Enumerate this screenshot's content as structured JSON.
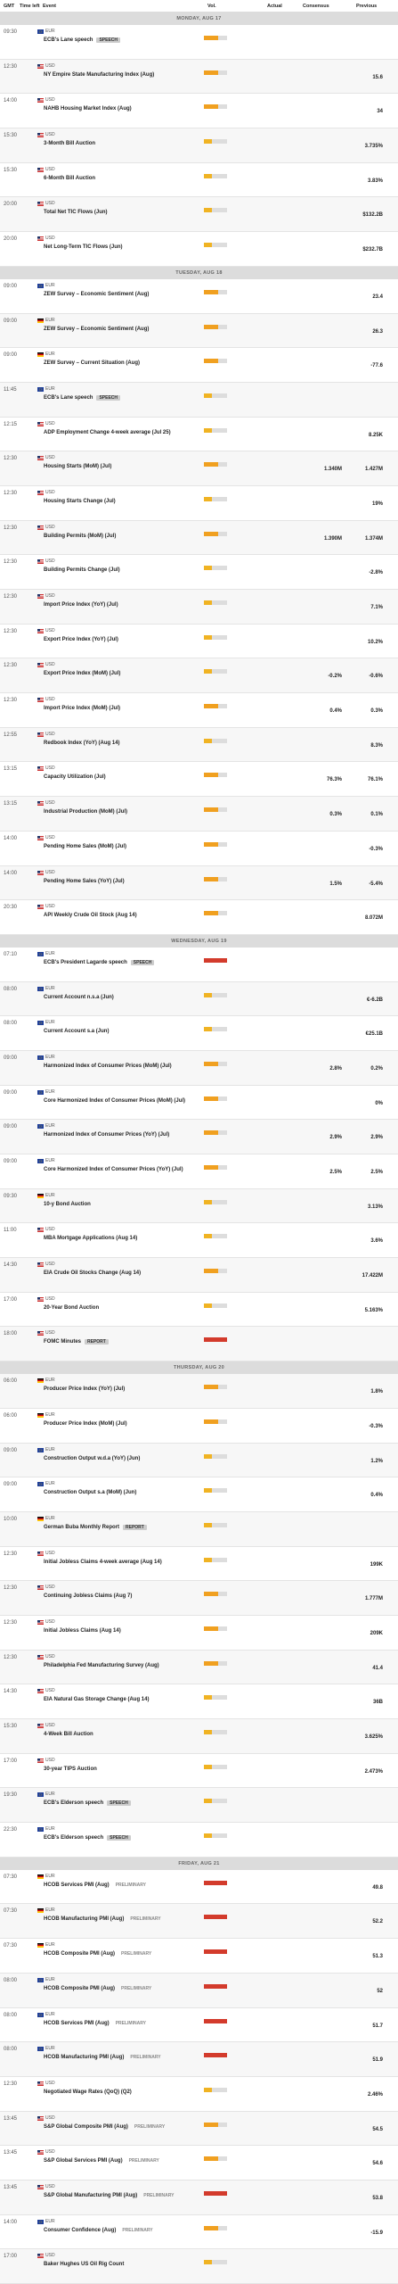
{
  "header": {
    "columns": [
      "GMT",
      "Time left",
      "Event",
      "Vol.",
      "Actual",
      "Consensus",
      "Previous"
    ]
  },
  "days": [
    {
      "label": "MONDAY, AUG 17",
      "events": [
        {
          "time": "09:30",
          "flag": "eu",
          "currency": "EUR",
          "event": "ECB's Lane speech",
          "tag": "SPEECH",
          "vol": "medium"
        },
        {
          "time": "12:30",
          "flag": "us",
          "currency": "USD",
          "event": "NY Empire State Manufacturing Index (Aug)",
          "previous": "15.6",
          "vol": "medium"
        },
        {
          "time": "14:00",
          "flag": "us",
          "currency": "USD",
          "event": "NAHB Housing Market Index (Aug)",
          "previous": "34",
          "vol": "medium"
        },
        {
          "time": "15:30",
          "flag": "us",
          "currency": "USD",
          "event": "3-Month Bill Auction",
          "previous": "3.735%",
          "vol": "low"
        },
        {
          "time": "15:30",
          "flag": "us",
          "currency": "USD",
          "event": "6-Month Bill Auction",
          "previous": "3.83%",
          "vol": "low"
        },
        {
          "time": "20:00",
          "flag": "us",
          "currency": "USD",
          "event": "Total Net TIC Flows (Jun)",
          "previous": "$132.2B",
          "vol": "low"
        },
        {
          "time": "20:00",
          "flag": "us",
          "currency": "USD",
          "event": "Net Long-Term TIC Flows (Jun)",
          "previous": "$232.7B",
          "vol": "low"
        }
      ]
    },
    {
      "label": "TUESDAY, AUG 18",
      "events": [
        {
          "time": "09:00",
          "flag": "eu",
          "currency": "EUR",
          "event": "ZEW Survey – Economic Sentiment (Aug)",
          "previous": "23.4",
          "vol": "medium"
        },
        {
          "time": "09:00",
          "flag": "de",
          "currency": "EUR",
          "event": "ZEW Survey – Economic Sentiment (Aug)",
          "previous": "26.3",
          "vol": "medium"
        },
        {
          "time": "09:00",
          "flag": "de",
          "currency": "EUR",
          "event": "ZEW Survey – Current Situation (Aug)",
          "previous": "-77.6",
          "vol": "medium"
        },
        {
          "time": "11:45",
          "flag": "eu",
          "currency": "EUR",
          "event": "ECB's Lane speech",
          "tag": "SPEECH",
          "vol": "low"
        },
        {
          "time": "12:15",
          "flag": "us",
          "currency": "USD",
          "event": "ADP Employment Change 4-week average (Jul 25)",
          "previous": "8.25K",
          "vol": "low"
        },
        {
          "time": "12:30",
          "flag": "us",
          "currency": "USD",
          "event": "Housing Starts (MoM) (Jul)",
          "consensus": "1.340M",
          "previous": "1.427M",
          "vol": "medium"
        },
        {
          "time": "12:30",
          "flag": "us",
          "currency": "USD",
          "event": "Housing Starts Change (Jul)",
          "previous": "19%",
          "vol": "low"
        },
        {
          "time": "12:30",
          "flag": "us",
          "currency": "USD",
          "event": "Building Permits (MoM) (Jul)",
          "consensus": "1.390M",
          "previous": "1.374M",
          "vol": "medium"
        },
        {
          "time": "12:30",
          "flag": "us",
          "currency": "USD",
          "event": "Building Permits Change (Jul)",
          "previous": "-2.8%",
          "vol": "low"
        },
        {
          "time": "12:30",
          "flag": "us",
          "currency": "USD",
          "event": "Import Price Index (YoY) (Jul)",
          "previous": "7.1%",
          "vol": "low"
        },
        {
          "time": "12:30",
          "flag": "us",
          "currency": "USD",
          "event": "Export Price Index (YoY) (Jul)",
          "previous": "10.2%",
          "vol": "low"
        },
        {
          "time": "12:30",
          "flag": "us",
          "currency": "USD",
          "event": "Export Price Index (MoM) (Jul)",
          "consensus": "-0.2%",
          "previous": "-0.6%",
          "vol": "low"
        },
        {
          "time": "12:30",
          "flag": "us",
          "currency": "USD",
          "event": "Import Price Index (MoM) (Jul)",
          "consensus": "0.4%",
          "previous": "0.3%",
          "vol": "medium"
        },
        {
          "time": "12:55",
          "flag": "us",
          "currency": "USD",
          "event": "Redbook Index (YoY) (Aug 14)",
          "previous": "8.3%",
          "vol": "low"
        },
        {
          "time": "13:15",
          "flag": "us",
          "currency": "USD",
          "event": "Capacity Utilization (Jul)",
          "consensus": "76.3%",
          "previous": "76.1%",
          "vol": "medium"
        },
        {
          "time": "13:15",
          "flag": "us",
          "currency": "USD",
          "event": "Industrial Production (MoM) (Jul)",
          "consensus": "0.3%",
          "previous": "0.1%",
          "vol": "medium"
        },
        {
          "time": "14:00",
          "flag": "us",
          "currency": "USD",
          "event": "Pending Home Sales (MoM) (Jul)",
          "previous": "-0.3%",
          "vol": "medium"
        },
        {
          "time": "14:00",
          "flag": "us",
          "currency": "USD",
          "event": "Pending Home Sales (YoY) (Jul)",
          "consensus": "1.5%",
          "previous": "-5.4%",
          "vol": "medium"
        },
        {
          "time": "20:30",
          "flag": "us",
          "currency": "USD",
          "event": "API Weekly Crude Oil Stock (Aug 14)",
          "previous": "8.072M",
          "vol": "medium"
        }
      ]
    },
    {
      "label": "WEDNESDAY, AUG 19",
      "events": [
        {
          "time": "07:10",
          "flag": "eu",
          "currency": "EUR",
          "event": "ECB's President Lagarde speech",
          "tag": "SPEECH",
          "vol": "high"
        },
        {
          "time": "08:00",
          "flag": "eu",
          "currency": "EUR",
          "event": "Current Account n.s.a (Jun)",
          "previous": "€-6.2B",
          "vol": "low"
        },
        {
          "time": "08:00",
          "flag": "eu",
          "currency": "EUR",
          "event": "Current Account s.a (Jun)",
          "previous": "€25.1B",
          "vol": "low"
        },
        {
          "time": "09:00",
          "flag": "eu",
          "currency": "EUR",
          "event": "Harmonized Index of Consumer Prices (MoM) (Jul)",
          "consensus": "2.8%",
          "previous": "0.2%",
          "vol": "medium"
        },
        {
          "time": "09:00",
          "flag": "eu",
          "currency": "EUR",
          "event": "Core Harmonized Index of Consumer Prices (MoM) (Jul)",
          "previous": "0%",
          "vol": "medium"
        },
        {
          "time": "09:00",
          "flag": "eu",
          "currency": "EUR",
          "event": "Harmonized Index of Consumer Prices (YoY) (Jul)",
          "consensus": "2.9%",
          "previous": "2.9%",
          "vol": "medium"
        },
        {
          "time": "09:00",
          "flag": "eu",
          "currency": "EUR",
          "event": "Core Harmonized Index of Consumer Prices (YoY) (Jul)",
          "consensus": "2.5%",
          "previous": "2.5%",
          "vol": "medium"
        },
        {
          "time": "09:30",
          "flag": "de",
          "currency": "EUR",
          "event": "10-y Bond Auction",
          "previous": "3.13%",
          "vol": "low"
        },
        {
          "time": "11:00",
          "flag": "us",
          "currency": "USD",
          "event": "MBA Mortgage Applications (Aug 14)",
          "previous": "3.6%",
          "vol": "low"
        },
        {
          "time": "14:30",
          "flag": "us",
          "currency": "USD",
          "event": "EIA Crude Oil Stocks Change (Aug 14)",
          "previous": "17.422M",
          "vol": "medium"
        },
        {
          "time": "17:00",
          "flag": "us",
          "currency": "USD",
          "event": "20-Year Bond Auction",
          "previous": "5.163%",
          "vol": "low"
        },
        {
          "time": "18:00",
          "flag": "us",
          "currency": "USD",
          "event": "FOMC Minutes",
          "tag": "REPORT",
          "vol": "high"
        }
      ]
    },
    {
      "label": "THURSDAY, AUG 20",
      "events": [
        {
          "time": "06:00",
          "flag": "de",
          "currency": "EUR",
          "event": "Producer Price Index (YoY) (Jul)",
          "previous": "1.8%",
          "vol": "medium"
        },
        {
          "time": "06:00",
          "flag": "de",
          "currency": "EUR",
          "event": "Producer Price Index (MoM) (Jul)",
          "previous": "-0.3%",
          "vol": "medium"
        },
        {
          "time": "09:00",
          "flag": "eu",
          "currency": "EUR",
          "event": "Construction Output w.d.a (YoY) (Jun)",
          "previous": "1.2%",
          "vol": "low"
        },
        {
          "time": "09:00",
          "flag": "eu",
          "currency": "EUR",
          "event": "Construction Output s.a (MoM) (Jun)",
          "previous": "0.4%",
          "vol": "low"
        },
        {
          "time": "10:00",
          "flag": "de",
          "currency": "EUR",
          "event": "German Buba Monthly Report",
          "tag": "REPORT",
          "vol": "low"
        },
        {
          "time": "12:30",
          "flag": "us",
          "currency": "USD",
          "event": "Initial Jobless Claims 4-week average (Aug 14)",
          "previous": "199K",
          "vol": "low"
        },
        {
          "time": "12:30",
          "flag": "us",
          "currency": "USD",
          "event": "Continuing Jobless Claims (Aug 7)",
          "previous": "1.777M",
          "vol": "medium"
        },
        {
          "time": "12:30",
          "flag": "us",
          "currency": "USD",
          "event": "Initial Jobless Claims (Aug 14)",
          "previous": "209K",
          "vol": "medium"
        },
        {
          "time": "12:30",
          "flag": "us",
          "currency": "USD",
          "event": "Philadelphia Fed Manufacturing Survey (Aug)",
          "previous": "41.4",
          "vol": "medium"
        },
        {
          "time": "14:30",
          "flag": "us",
          "currency": "USD",
          "event": "EIA Natural Gas Storage Change (Aug 14)",
          "previous": "36B",
          "vol": "low"
        },
        {
          "time": "15:30",
          "flag": "us",
          "currency": "USD",
          "event": "4-Week Bill Auction",
          "previous": "3.625%",
          "vol": "low"
        },
        {
          "time": "17:00",
          "flag": "us",
          "currency": "USD",
          "event": "30-year TIPS Auction",
          "previous": "2.473%",
          "vol": "low"
        },
        {
          "time": "19:30",
          "flag": "eu",
          "currency": "EUR",
          "event": "ECB's Elderson speech",
          "tag": "SPEECH",
          "vol": "low"
        },
        {
          "time": "22:30",
          "flag": "eu",
          "currency": "EUR",
          "event": "ECB's Elderson speech",
          "tag": "SPEECH",
          "vol": "low"
        }
      ]
    },
    {
      "label": "FRIDAY, AUG 21",
      "events": [
        {
          "time": "07:30",
          "flag": "de",
          "currency": "EUR",
          "event": "HCOB Services PMI (Aug)",
          "tag": "PRELIMINARY",
          "previous": "49.8",
          "vol": "high"
        },
        {
          "time": "07:30",
          "flag": "de",
          "currency": "EUR",
          "event": "HCOB Manufacturing PMI (Aug)",
          "tag": "PRELIMINARY",
          "previous": "52.2",
          "vol": "high"
        },
        {
          "time": "07:30",
          "flag": "de",
          "currency": "EUR",
          "event": "HCOB Composite PMI (Aug)",
          "tag": "PRELIMINARY",
          "previous": "51.3",
          "vol": "high"
        },
        {
          "time": "08:00",
          "flag": "eu",
          "currency": "EUR",
          "event": "HCOB Composite PMI (Aug)",
          "tag": "PRELIMINARY",
          "previous": "52",
          "vol": "high"
        },
        {
          "time": "08:00",
          "flag": "eu",
          "currency": "EUR",
          "event": "HCOB Services PMI (Aug)",
          "tag": "PRELIMINARY",
          "previous": "51.7",
          "vol": "high"
        },
        {
          "time": "08:00",
          "flag": "eu",
          "currency": "EUR",
          "event": "HCOB Manufacturing PMI (Aug)",
          "tag": "PRELIMINARY",
          "previous": "51.9",
          "vol": "high"
        },
        {
          "time": "12:30",
          "flag": "us",
          "currency": "USD",
          "event": "Negotiated Wage Rates (QoQ) (Q2)",
          "previous": "2.46%",
          "vol": "low"
        },
        {
          "time": "13:45",
          "flag": "us",
          "currency": "USD",
          "event": "S&P Global Composite PMI (Aug)",
          "tag": "PRELIMINARY",
          "previous": "54.5",
          "vol": "medium"
        },
        {
          "time": "13:45",
          "flag": "us",
          "currency": "USD",
          "event": "S&P Global Services PMI (Aug)",
          "tag": "PRELIMINARY",
          "previous": "54.6",
          "vol": "medium"
        },
        {
          "time": "13:45",
          "flag": "us",
          "currency": "USD",
          "event": "S&P Global Manufacturing PMI (Aug)",
          "tag": "PRELIMINARY",
          "previous": "53.8",
          "vol": "high"
        },
        {
          "time": "14:00",
          "flag": "eu",
          "currency": "EUR",
          "event": "Consumer Confidence (Aug)",
          "tag": "PRELIMINARY",
          "previous": "-15.9",
          "vol": "medium"
        },
        {
          "time": "17:00",
          "flag": "us",
          "currency": "USD",
          "event": "Baker Hughes US Oil Rig Count",
          "vol": "low"
        }
      ]
    }
  ]
}
